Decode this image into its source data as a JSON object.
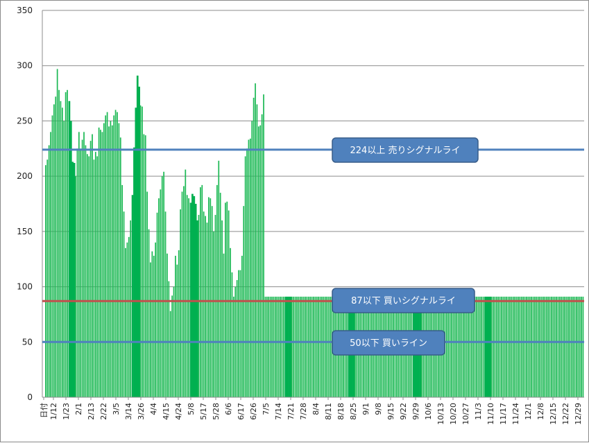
{
  "chart_data": {
    "type": "bar",
    "ylim": [
      0,
      350
    ],
    "yticks": [
      0,
      50,
      100,
      150,
      200,
      250,
      300,
      350
    ],
    "grid": true,
    "bar_color": "#1db955",
    "highlight_color": "#00b050",
    "x_tick_labels": [
      "日付",
      "1/12",
      "1/23",
      "2/1",
      "2/13",
      "2/22",
      "3/5",
      "3/14",
      "3/26",
      "4/4",
      "4/15",
      "4/24",
      "5/8",
      "5/17",
      "5/28",
      "6/6",
      "6/17",
      "6/26",
      "7/5",
      "7/14",
      "7/21",
      "7/28",
      "8/4",
      "8/11",
      "8/18",
      "8/25",
      "9/1",
      "9/8",
      "9/15",
      "9/22",
      "9/29",
      "10/6",
      "10/13",
      "10/20",
      "10/27",
      "11/3",
      "11/10",
      "11/17",
      "11/24",
      "12/1",
      "12/8",
      "12/15",
      "12/22",
      "12/29"
    ],
    "series": [
      {
        "values": [
          210,
          215,
          228,
          240,
          255,
          265,
          272,
          297,
          278,
          268,
          262,
          250,
          276,
          278,
          268,
          250,
          213,
          212,
          200,
          225,
          240,
          225,
          233,
          240,
          228,
          220,
          218,
          232,
          238,
          215,
          222,
          218,
          244,
          242,
          240,
          248,
          255,
          258,
          245,
          250,
          246,
          255,
          260,
          258,
          248,
          235,
          192,
          168,
          135,
          140,
          145,
          160,
          183,
          226,
          262,
          291,
          281,
          264,
          263,
          238,
          237,
          186,
          152,
          122,
          132,
          128,
          140,
          167,
          180,
          188,
          200,
          204,
          168,
          130,
          105,
          78,
          92,
          100,
          128,
          120,
          133,
          170,
          186,
          191,
          206,
          183,
          180,
          176,
          184,
          182,
          175,
          160,
          165,
          190,
          192,
          168,
          164,
          158,
          181,
          180,
          173,
          150,
          165,
          192,
          214,
          185,
          160,
          130,
          176,
          177,
          169,
          135,
          113,
          91,
          100,
          106,
          115,
          115,
          128,
          173,
          218,
          225,
          233,
          234,
          250,
          271,
          284,
          265,
          245,
          246,
          256,
          274
        ],
        "highlight_ranges": [
          [
            14,
            17
          ],
          [
            52,
            56
          ],
          [
            87,
            91
          ]
        ],
        "flat_value": 91,
        "flat_total": 192,
        "flat_highlight_ranges": [
          [
            12,
            15
          ],
          [
            50,
            53
          ],
          [
            89,
            93
          ],
          [
            132,
            135
          ]
        ]
      }
    ],
    "reference_lines": [
      {
        "value": 224,
        "label": "224以上  売りシグナルライ",
        "color": "#4f81bd"
      },
      {
        "value": 87,
        "label": "87以下  買いシグナルライ",
        "color": "#c0504d"
      },
      {
        "value": 50,
        "label": "50以下  買いライン",
        "color": "#4f81bd"
      }
    ],
    "callout_color": "#4f81bd",
    "callout_border": "#385d8a"
  }
}
